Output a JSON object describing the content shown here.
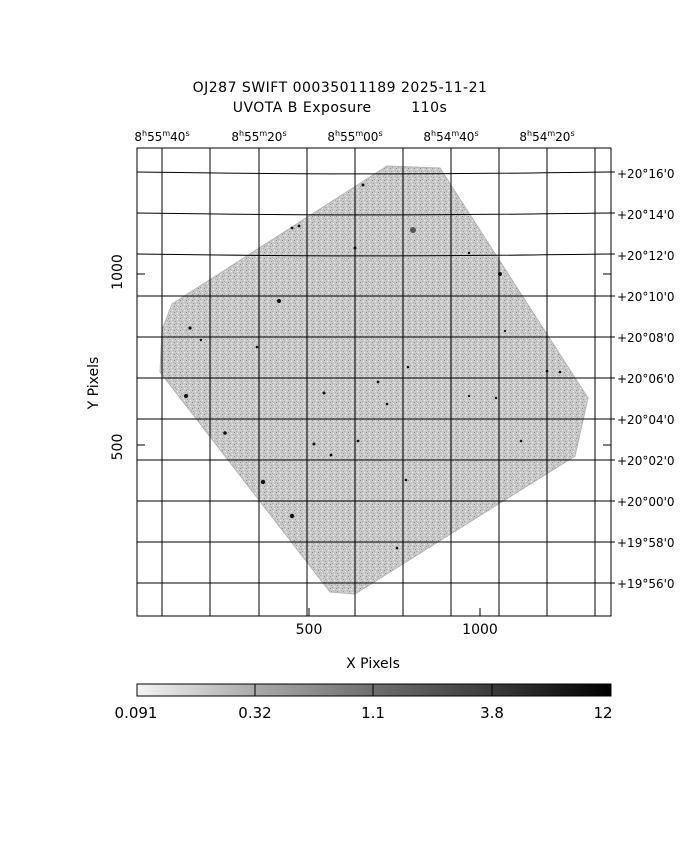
{
  "title": {
    "line1": "OJ287 SWIFT 00035011189 2025-11-21",
    "line2": "UVOTA B Exposure        110s"
  },
  "ra_axis": [
    {
      "h": "8",
      "m": "55",
      "s": "40"
    },
    {
      "h": "8",
      "m": "55",
      "s": "20"
    },
    {
      "h": "8",
      "m": "55",
      "s": "00"
    },
    {
      "h": "8",
      "m": "54",
      "s": "40"
    },
    {
      "h": "8",
      "m": "54",
      "s": "20"
    }
  ],
  "dec_axis": [
    "+20°16'0",
    "+20°14'0",
    "+20°12'0",
    "+20°10'0",
    "+20°08'0",
    "+20°06'0",
    "+20°04'0",
    "+20°02'0",
    "+20°00'0",
    "+19°58'0",
    "+19°56'0"
  ],
  "x_axis": {
    "label": "X Pixels",
    "ticks": [
      "500",
      "1000"
    ]
  },
  "y_axis": {
    "label": "Y Pixels",
    "ticks": [
      "1000",
      "500"
    ]
  },
  "colorbar": {
    "labels": [
      "0.091",
      "0.32",
      "1.1",
      "3.8",
      "12"
    ]
  }
}
